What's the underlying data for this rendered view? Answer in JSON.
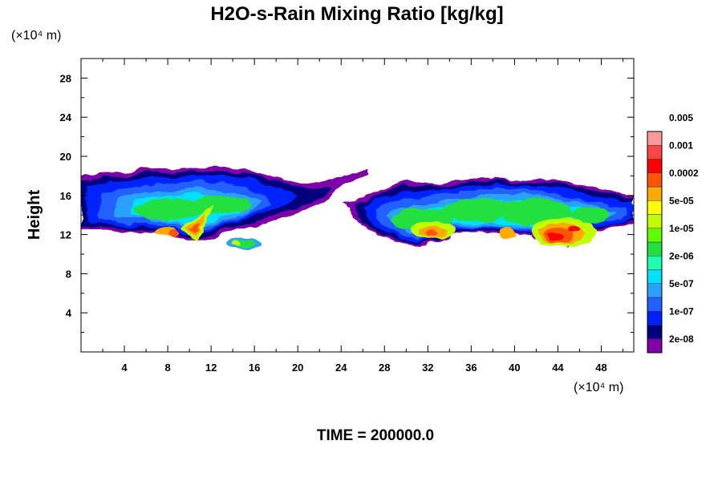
{
  "chart_data": {
    "type": "heatmap",
    "title": "H2O-s-Rain Mixing Ratio [kg/kg]",
    "ylabel": "Height",
    "y_unit": "(×10⁴ m)",
    "x_unit": "(×10⁴ m)",
    "footer": "TIME = 200000.0",
    "xlim": [
      0,
      51
    ],
    "ylim": [
      0,
      30
    ],
    "x_ticks": [
      "4",
      "8",
      "12",
      "16",
      "20",
      "24",
      "28",
      "32",
      "36",
      "40",
      "44",
      "48"
    ],
    "y_ticks": [
      "4",
      "8",
      "12",
      "16",
      "20",
      "24",
      "28"
    ],
    "colorbar": {
      "colors": [
        "#7f00a8",
        "#00007f",
        "#0020ff",
        "#2060ff",
        "#2aa0ff",
        "#00e0ff",
        "#20ffb0",
        "#20e040",
        "#60ff00",
        "#c0ff00",
        "#ffff00",
        "#ffaa00",
        "#ff5500",
        "#ff0000",
        "#ff4444",
        "#ff9999"
      ],
      "labels": [
        "2e-08",
        "1e-07",
        "5e-07",
        "2e-06",
        "1e-05",
        "5e-05",
        "0.0002",
        "0.001",
        "0.005"
      ]
    },
    "regions": [
      {
        "name": "west-cloud",
        "x": [
          0,
          26.5
        ],
        "y": [
          10.5,
          19
        ],
        "peak_x": 10.5,
        "peak_y": 12.5,
        "peak_level": "0.001"
      },
      {
        "name": "small-cell",
        "x": [
          13.5,
          16.5
        ],
        "y": [
          10.5,
          11.8
        ],
        "peak_level": "2e-06"
      },
      {
        "name": "east-cloud",
        "x": [
          24,
          51
        ],
        "y": [
          10.3,
          18
        ],
        "peak_x": 44,
        "peak_y": 11.8,
        "peak_level": "0.001"
      }
    ]
  }
}
